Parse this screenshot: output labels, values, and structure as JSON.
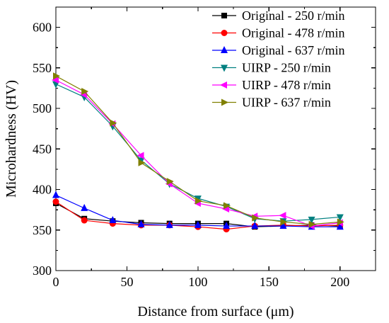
{
  "chart_data": {
    "type": "line",
    "xlabel": "Distance from surface (μm)",
    "ylabel": "Microhardness (HV)",
    "xlim": [
      0,
      225
    ],
    "ylim": [
      300,
      625
    ],
    "xticks": [
      0,
      50,
      100,
      150,
      200
    ],
    "yticks": [
      300,
      350,
      400,
      450,
      500,
      550,
      600
    ],
    "grid": false,
    "legend_position": "top-right",
    "x": [
      0,
      20,
      40,
      60,
      80,
      100,
      120,
      140,
      160,
      180,
      200
    ],
    "series": [
      {
        "name": "Original - 250 r/min",
        "marker": "square",
        "color": "#000000",
        "values": [
          383,
          364,
          361,
          359,
          358,
          358,
          358,
          354,
          355,
          356,
          355
        ]
      },
      {
        "name": "Original - 478 r/min",
        "marker": "circle",
        "color": "#ff0000",
        "values": [
          385,
          362,
          358,
          356,
          356,
          354,
          351,
          355,
          356,
          355,
          356
        ]
      },
      {
        "name": "Original - 637 r/min",
        "marker": "triangle-up",
        "color": "#0000ff",
        "values": [
          393,
          377,
          362,
          357,
          356,
          356,
          355,
          355,
          355,
          354,
          354
        ]
      },
      {
        "name": "UIRP - 250 r/min",
        "marker": "triangle-down",
        "color": "#008080",
        "values": [
          530,
          514,
          478,
          436,
          407,
          389,
          379,
          364,
          361,
          363,
          366
        ]
      },
      {
        "name": "UIRP - 478 r/min",
        "marker": "triangle-left",
        "color": "#ff00ff",
        "values": [
          535,
          517,
          481,
          442,
          407,
          383,
          376,
          367,
          368,
          355,
          359
        ]
      },
      {
        "name": "UIRP - 637 r/min",
        "marker": "triangle-right",
        "color": "#808000",
        "values": [
          540,
          521,
          482,
          433,
          410,
          386,
          380,
          365,
          360,
          357,
          360
        ]
      }
    ]
  }
}
